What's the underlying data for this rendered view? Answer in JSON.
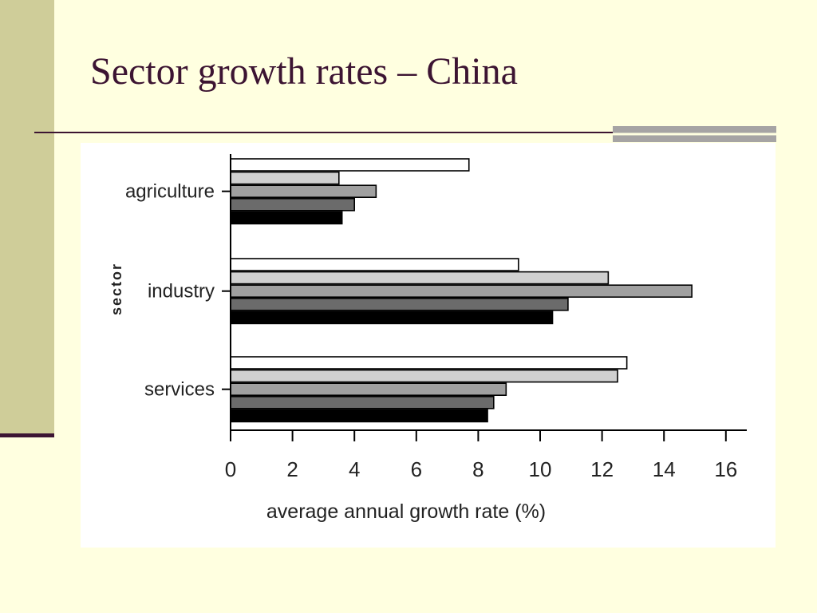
{
  "slide": {
    "title": "Sector growth rates – China"
  },
  "colors": {
    "background": "#ffffe0",
    "side_band": "#cfcd99",
    "title": "#3c1432",
    "accent_bar": "#a6a4a4"
  },
  "chart_data": {
    "type": "bar",
    "orientation": "horizontal",
    "categories": [
      "agriculture",
      "industry",
      "services"
    ],
    "series": [
      {
        "fill": "#ffffff",
        "values": [
          7.7,
          9.3,
          12.8
        ]
      },
      {
        "fill": "#d0d0d0",
        "values": [
          3.5,
          12.2,
          12.5
        ]
      },
      {
        "fill": "#a0a0a0",
        "values": [
          4.7,
          14.9,
          8.9
        ]
      },
      {
        "fill": "#6b6b6b",
        "values": [
          4.0,
          10.9,
          8.5
        ]
      },
      {
        "fill": "#000000",
        "values": [
          3.6,
          10.4,
          8.3
        ]
      }
    ],
    "xlabel": "average annual growth rate (%)",
    "ylabel": "sector",
    "xlim": [
      0,
      16.7
    ],
    "xticks": [
      0,
      2,
      4,
      6,
      8,
      10,
      12,
      14,
      16
    ],
    "grid": false,
    "legend": "none"
  }
}
